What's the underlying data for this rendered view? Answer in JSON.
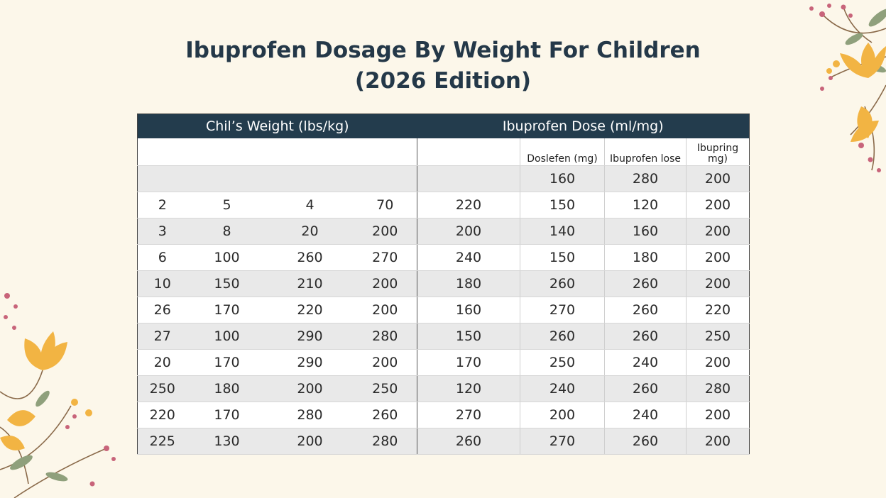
{
  "title_line1": "Ibuprofen Dosage By Weight For Children",
  "title_line2": "(2026 Edition)",
  "table": {
    "header_left": "Chil’s Weight (lbs/kg)",
    "header_right": "Ibuprofen Dose (ml/mg)",
    "subheaders": [
      "Doslefen (mg)",
      "Ibuprofen lose",
      "Ibupring mg)"
    ],
    "first_row": [
      "160",
      "280",
      "200"
    ],
    "rows": [
      [
        "2",
        "5",
        "4",
        "70",
        "220",
        "150",
        "120",
        "200"
      ],
      [
        "3",
        "8",
        "20",
        "200",
        "200",
        "140",
        "160",
        "200"
      ],
      [
        "6",
        "100",
        "260",
        "270",
        "240",
        "150",
        "180",
        "200"
      ],
      [
        "10",
        "150",
        "210",
        "200",
        "180",
        "260",
        "260",
        "200"
      ],
      [
        "26",
        "170",
        "220",
        "200",
        "160",
        "270",
        "260",
        "220"
      ],
      [
        "27",
        "100",
        "290",
        "280",
        "150",
        "260",
        "260",
        "250"
      ],
      [
        "20",
        "170",
        "290",
        "200",
        "170",
        "250",
        "240",
        "200"
      ],
      [
        "250",
        "180",
        "200",
        "250",
        "120",
        "240",
        "260",
        "280"
      ],
      [
        "220",
        "170",
        "280",
        "260",
        "270",
        "200",
        "240",
        "200"
      ],
      [
        "225",
        "130",
        "200",
        "280",
        "260",
        "270",
        "260",
        "200"
      ]
    ]
  },
  "decoration": {
    "petal_color": "#f2b443",
    "stem_color": "#8a6a4a",
    "berry_color": "#c8647a",
    "leaf_color": "#8fa07c"
  }
}
